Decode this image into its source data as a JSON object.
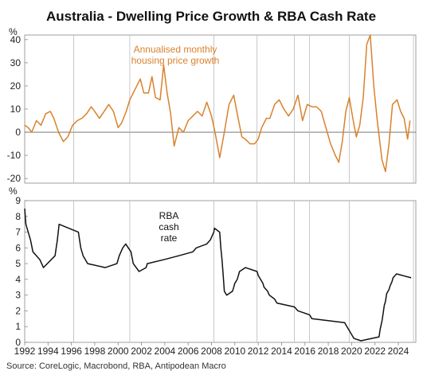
{
  "chart_data": [
    {
      "type": "line",
      "title": "Australia - Dwelling Price Growth & RBA Cash Rate",
      "unit": "%",
      "ylim": [
        -22,
        42
      ],
      "yticks": [
        -20,
        -10,
        0,
        10,
        20,
        30,
        40
      ],
      "annotation": [
        "Annualised monthly",
        "housing price growth"
      ],
      "series": [
        {
          "name": "Annualised monthly housing price growth",
          "color": "#d9822b",
          "points": [
            [
              1992.0,
              3
            ],
            [
              1992.3,
              2
            ],
            [
              1992.6,
              0
            ],
            [
              1993.0,
              5
            ],
            [
              1993.4,
              3
            ],
            [
              1993.8,
              8
            ],
            [
              1994.2,
              9
            ],
            [
              1994.5,
              6
            ],
            [
              1994.9,
              0
            ],
            [
              1995.3,
              -4
            ],
            [
              1995.7,
              -2
            ],
            [
              1996.1,
              3
            ],
            [
              1996.5,
              5
            ],
            [
              1996.9,
              6
            ],
            [
              1997.3,
              8
            ],
            [
              1997.7,
              11
            ],
            [
              1998.0,
              9
            ],
            [
              1998.4,
              6
            ],
            [
              1998.8,
              9
            ],
            [
              1999.2,
              12
            ],
            [
              1999.6,
              9
            ],
            [
              2000.0,
              2
            ],
            [
              2000.3,
              4
            ],
            [
              2000.7,
              9
            ],
            [
              2001.0,
              14
            ],
            [
              2001.3,
              17
            ],
            [
              2001.6,
              20
            ],
            [
              2001.9,
              23
            ],
            [
              2002.2,
              17
            ],
            [
              2002.6,
              17
            ],
            [
              2002.9,
              24
            ],
            [
              2003.2,
              15
            ],
            [
              2003.6,
              14
            ],
            [
              2003.9,
              29
            ],
            [
              2004.2,
              17
            ],
            [
              2004.5,
              8
            ],
            [
              2004.8,
              -6
            ],
            [
              2005.2,
              2
            ],
            [
              2005.6,
              0
            ],
            [
              2006.0,
              5
            ],
            [
              2006.4,
              7
            ],
            [
              2006.8,
              9
            ],
            [
              2007.2,
              7
            ],
            [
              2007.6,
              13
            ],
            [
              2008.0,
              7
            ],
            [
              2008.3,
              0
            ],
            [
              2008.7,
              -11
            ],
            [
              2009.1,
              0
            ],
            [
              2009.5,
              12
            ],
            [
              2009.9,
              16
            ],
            [
              2010.2,
              8
            ],
            [
              2010.6,
              -2
            ],
            [
              2010.9,
              -3
            ],
            [
              2011.3,
              -5
            ],
            [
              2011.7,
              -5
            ],
            [
              2012.0,
              -3
            ],
            [
              2012.3,
              2
            ],
            [
              2012.7,
              6
            ],
            [
              2013.0,
              6
            ],
            [
              2013.4,
              12
            ],
            [
              2013.8,
              14
            ],
            [
              2014.2,
              10
            ],
            [
              2014.6,
              7
            ],
            [
              2015.0,
              10
            ],
            [
              2015.4,
              16
            ],
            [
              2015.8,
              5
            ],
            [
              2016.2,
              12
            ],
            [
              2016.6,
              11
            ],
            [
              2017.0,
              11
            ],
            [
              2017.4,
              9
            ],
            [
              2017.8,
              2
            ],
            [
              2018.2,
              -5
            ],
            [
              2018.6,
              -10
            ],
            [
              2018.9,
              -13
            ],
            [
              2019.2,
              -4
            ],
            [
              2019.5,
              9
            ],
            [
              2019.8,
              15
            ],
            [
              2020.1,
              6
            ],
            [
              2020.4,
              -2
            ],
            [
              2020.7,
              3
            ],
            [
              2021.0,
              15
            ],
            [
              2021.3,
              38
            ],
            [
              2021.6,
              42
            ],
            [
              2021.9,
              20
            ],
            [
              2022.2,
              5
            ],
            [
              2022.6,
              -12
            ],
            [
              2022.9,
              -17
            ],
            [
              2023.2,
              -5
            ],
            [
              2023.5,
              12
            ],
            [
              2023.9,
              14
            ],
            [
              2024.2,
              9
            ],
            [
              2024.5,
              6
            ],
            [
              2024.8,
              -3
            ],
            [
              2025.0,
              5
            ]
          ]
        }
      ]
    },
    {
      "type": "line",
      "unit": "%",
      "ylim": [
        0,
        9
      ],
      "yticks": [
        0,
        1,
        2,
        3,
        4,
        5,
        6,
        7,
        8,
        9
      ],
      "annotation": [
        "RBA",
        "cash",
        "rate"
      ],
      "series": [
        {
          "name": "RBA cash rate",
          "color": "#111111",
          "points": [
            [
              1992.0,
              8.5
            ],
            [
              1992.1,
              7.5
            ],
            [
              1992.5,
              6.5
            ],
            [
              1992.7,
              5.75
            ],
            [
              1993.3,
              5.25
            ],
            [
              1993.6,
              4.75
            ],
            [
              1994.6,
              5.5
            ],
            [
              1994.8,
              6.5
            ],
            [
              1994.95,
              7.5
            ],
            [
              1996.6,
              7.0
            ],
            [
              1996.8,
              6.0
            ],
            [
              1997.0,
              5.5
            ],
            [
              1997.4,
              5.0
            ],
            [
              1998.9,
              4.75
            ],
            [
              1999.9,
              5.0
            ],
            [
              2000.1,
              5.5
            ],
            [
              2000.4,
              6.0
            ],
            [
              2000.65,
              6.25
            ],
            [
              2001.1,
              5.75
            ],
            [
              2001.3,
              5.0
            ],
            [
              2001.8,
              4.5
            ],
            [
              2002.4,
              4.75
            ],
            [
              2002.5,
              5.0
            ],
            [
              2003.9,
              5.25
            ],
            [
              2005.2,
              5.5
            ],
            [
              2006.4,
              5.75
            ],
            [
              2006.7,
              6.0
            ],
            [
              2007.6,
              6.25
            ],
            [
              2007.9,
              6.5
            ],
            [
              2008.2,
              7.0
            ],
            [
              2008.25,
              7.25
            ],
            [
              2008.7,
              7.0
            ],
            [
              2008.8,
              6.0
            ],
            [
              2008.9,
              5.25
            ],
            [
              2009.0,
              4.25
            ],
            [
              2009.1,
              3.25
            ],
            [
              2009.3,
              3.0
            ],
            [
              2009.8,
              3.25
            ],
            [
              2009.9,
              3.5
            ],
            [
              2010.0,
              3.75
            ],
            [
              2010.2,
              4.0
            ],
            [
              2010.4,
              4.5
            ],
            [
              2010.9,
              4.75
            ],
            [
              2011.9,
              4.5
            ],
            [
              2012.0,
              4.25
            ],
            [
              2012.4,
              3.75
            ],
            [
              2012.5,
              3.5
            ],
            [
              2012.8,
              3.25
            ],
            [
              2012.95,
              3.0
            ],
            [
              2013.4,
              2.75
            ],
            [
              2013.6,
              2.5
            ],
            [
              2015.1,
              2.25
            ],
            [
              2015.4,
              2.0
            ],
            [
              2016.4,
              1.75
            ],
            [
              2016.6,
              1.5
            ],
            [
              2019.4,
              1.25
            ],
            [
              2019.6,
              1.0
            ],
            [
              2019.8,
              0.75
            ],
            [
              2020.2,
              0.25
            ],
            [
              2020.8,
              0.1
            ],
            [
              2022.35,
              0.35
            ],
            [
              2022.45,
              0.85
            ],
            [
              2022.6,
              1.35
            ],
            [
              2022.7,
              1.85
            ],
            [
              2022.8,
              2.35
            ],
            [
              2022.9,
              2.6
            ],
            [
              2023.0,
              3.1
            ],
            [
              2023.2,
              3.35
            ],
            [
              2023.3,
              3.6
            ],
            [
              2023.45,
              3.85
            ],
            [
              2023.55,
              4.1
            ],
            [
              2023.85,
              4.35
            ],
            [
              2025.1,
              4.1
            ]
          ]
        }
      ]
    }
  ],
  "shared": {
    "xlim": [
      1992,
      2025.5
    ],
    "xticks": [
      "1992",
      "1994",
      "1996",
      "1998",
      "2000",
      "2002",
      "2004",
      "2006",
      "2008",
      "2010",
      "2012",
      "2014",
      "2016",
      "2018",
      "2020",
      "2022",
      "2024"
    ],
    "xtick_values": [
      1992,
      1994,
      1996,
      1998,
      2000,
      2002,
      2004,
      2006,
      2008,
      2010,
      2012,
      2014,
      2016,
      2018,
      2020,
      2022,
      2024
    ],
    "vlines": [
      1996.2,
      2001.0,
      2008.2,
      2011.9,
      2015.1,
      2016.4,
      2019.8,
      2025.3
    ],
    "grid_color": "#bbbbbb",
    "source": "Source: CoreLogic, Macrobond, RBA, Antipodean Macro"
  }
}
